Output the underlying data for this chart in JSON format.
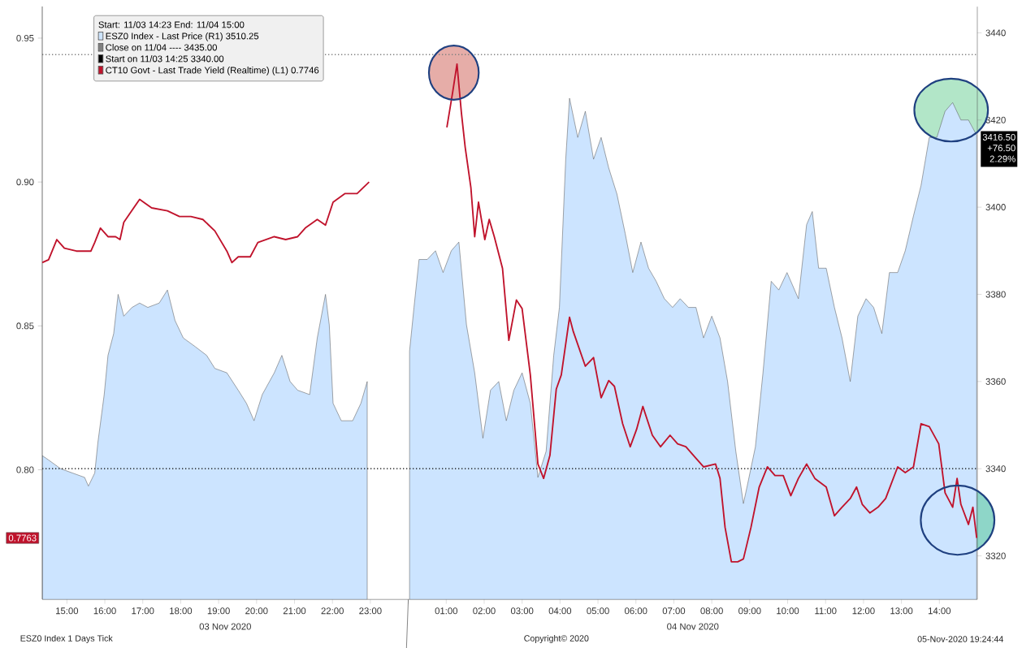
{
  "chart_data": {
    "type": "line",
    "legend_title": "Start: 11/03 14:23 End: 11/04 15:00",
    "legend": "top left",
    "xlim": [
      "2020-11-03T14:21",
      "2020-11-04T15:00"
    ],
    "xticks": [
      {
        "value": "2020-11-03T15:00",
        "label": "15:00"
      },
      {
        "value": "2020-11-03T16:00",
        "label": "16:00"
      },
      {
        "value": "2020-11-03T17:00",
        "label": "17:00"
      },
      {
        "value": "2020-11-03T18:00",
        "label": "18:00"
      },
      {
        "value": "2020-11-03T19:00",
        "label": "19:00"
      },
      {
        "value": "2020-11-03T20:00",
        "label": "20:00"
      },
      {
        "value": "2020-11-03T21:00",
        "label": "21:00"
      },
      {
        "value": "2020-11-03T22:00",
        "label": "22:00"
      },
      {
        "value": "2020-11-03T23:00",
        "label": "23:00"
      },
      {
        "value": "2020-11-04T00:00",
        "label": null
      },
      {
        "value": "2020-11-04T01:00",
        "label": "01:00"
      },
      {
        "value": "2020-11-04T02:00",
        "label": "02:00"
      },
      {
        "value": "2020-11-04T03:00",
        "label": "03:00"
      },
      {
        "value": "2020-11-04T04:00",
        "label": "04:00"
      },
      {
        "value": "2020-11-04T05:00",
        "label": "05:00"
      },
      {
        "value": "2020-11-04T06:00",
        "label": "06:00"
      },
      {
        "value": "2020-11-04T07:00",
        "label": "07:00"
      },
      {
        "value": "2020-11-04T08:00",
        "label": "08:00"
      },
      {
        "value": "2020-11-04T09:00",
        "label": "09:00"
      },
      {
        "value": "2020-11-04T10:00",
        "label": "10:00"
      },
      {
        "value": "2020-11-04T11:00",
        "label": "11:00"
      },
      {
        "value": "2020-11-04T12:00",
        "label": "12:00"
      },
      {
        "value": "2020-11-04T13:00",
        "label": "13:00"
      },
      {
        "value": "2020-11-04T14:00",
        "label": "14:00"
      }
    ],
    "ylim": [
      0.755,
      0.961
    ],
    "yticks": [
      {
        "value": 0.8,
        "label": "0.80"
      },
      {
        "value": 0.85,
        "label": "0.85"
      },
      {
        "value": 0.9,
        "label": "0.90"
      },
      {
        "value": 0.95,
        "label": "0.95"
      }
    ],
    "y2lim": [
      3310,
      3446
    ],
    "y2ticks": [
      3320,
      3340,
      3360,
      3380,
      3400,
      3420,
      3440
    ],
    "ref_lines": [
      {
        "axis": "y2",
        "value": 3435,
        "label": "Close on 11/04 ---- 3435.00",
        "color": "#808080",
        "line_style": "dotted"
      },
      {
        "axis": "y2",
        "value": 3340,
        "label": "Start on 11/03 14:25 3340.00",
        "color": "#000000",
        "line_style": "dotted"
      }
    ],
    "series": [
      {
        "name": "ESZ0 Index - Last Price (R1) 3510.25",
        "type": "area",
        "axis": "y2",
        "color": "#cce4ff",
        "x": [
          "2020-11-03T14:21",
          "2020-11-03T14:31",
          "2020-11-03T14:50",
          "2020-11-03T15:09",
          "2020-11-03T15:28",
          "2020-11-03T15:34",
          "2020-11-03T15:44",
          "2020-11-03T15:49",
          "2020-11-03T15:59",
          "2020-11-03T16:05",
          "2020-11-03T16:14",
          "2020-11-03T16:21",
          "2020-11-03T16:30",
          "2020-11-03T16:43",
          "2020-11-03T16:55",
          "2020-11-03T17:08",
          "2020-11-03T17:26",
          "2020-11-03T17:39",
          "2020-11-03T17:51",
          "2020-11-03T18:04",
          "2020-11-03T18:23",
          "2020-11-03T18:41",
          "2020-11-03T18:54",
          "2020-11-03T19:13",
          "2020-11-03T19:31",
          "2020-11-03T19:44",
          "2020-11-03T19:56",
          "2020-11-03T20:09",
          "2020-11-03T20:28",
          "2020-11-03T20:40",
          "2020-11-03T20:53",
          "2020-11-03T21:05",
          "2020-11-03T21:24",
          "2020-11-03T21:36",
          "2020-11-03T21:49",
          "2020-11-03T21:55",
          "2020-11-03T22:01",
          "2020-11-03T22:14",
          "2020-11-03T22:32",
          "2020-11-03T22:45",
          "2020-11-03T22:55",
          "2020-11-03T23:30",
          "2020-11-04T00:02",
          "2020-11-04T00:09",
          "2020-11-04T00:17",
          "2020-11-04T00:30",
          "2020-11-04T00:43",
          "2020-11-04T00:55",
          "2020-11-04T01:08",
          "2020-11-04T01:20",
          "2020-11-04T01:32",
          "2020-11-04T01:45",
          "2020-11-04T01:58",
          "2020-11-04T02:10",
          "2020-11-04T02:23",
          "2020-11-04T02:35",
          "2020-11-04T02:47",
          "2020-11-04T03:00",
          "2020-11-04T03:13",
          "2020-11-04T03:25",
          "2020-11-04T03:38",
          "2020-11-04T03:50",
          "2020-11-04T03:59",
          "2020-11-04T04:09",
          "2020-11-04T04:15",
          "2020-11-04T04:28",
          "2020-11-04T04:40",
          "2020-11-04T04:53",
          "2020-11-04T05:05",
          "2020-11-04T05:17",
          "2020-11-04T05:30",
          "2020-11-04T05:43",
          "2020-11-04T05:55",
          "2020-11-04T06:08",
          "2020-11-04T06:20",
          "2020-11-04T06:32",
          "2020-11-04T06:45",
          "2020-11-04T06:58",
          "2020-11-04T07:10",
          "2020-11-04T07:23",
          "2020-11-04T07:35",
          "2020-11-04T07:47",
          "2020-11-04T08:00",
          "2020-11-04T08:13",
          "2020-11-04T08:25",
          "2020-11-04T08:38",
          "2020-11-04T08:50",
          "2020-11-04T08:56",
          "2020-11-04T09:09",
          "2020-11-04T09:21",
          "2020-11-04T09:34",
          "2020-11-04T09:46",
          "2020-11-04T09:59",
          "2020-11-04T10:17",
          "2020-11-04T10:30",
          "2020-11-04T10:39",
          "2020-11-04T10:49",
          "2020-11-04T11:01",
          "2020-11-04T11:14",
          "2020-11-04T11:26",
          "2020-11-04T11:39",
          "2020-11-04T11:51",
          "2020-11-04T12:04",
          "2020-11-04T12:16",
          "2020-11-04T12:29",
          "2020-11-04T12:41",
          "2020-11-04T12:54",
          "2020-11-04T13:06",
          "2020-11-04T13:19",
          "2020-11-04T13:31",
          "2020-11-04T13:44",
          "2020-11-04T13:56",
          "2020-11-04T14:09",
          "2020-11-04T14:21",
          "2020-11-04T14:34",
          "2020-11-04T14:46",
          "2020-11-04T14:59"
        ],
        "values": [
          3343,
          3342,
          3340,
          3339,
          3338,
          3336,
          3339,
          3346,
          3357,
          3366,
          3371,
          3380,
          3375,
          3377,
          3378,
          3377,
          3378,
          3381,
          3374,
          3370,
          3368,
          3366,
          3363,
          3362,
          3358,
          3355,
          3351,
          3357,
          3362,
          3366,
          3360,
          3358,
          3357,
          3370,
          3380,
          3373,
          3355,
          3351,
          3351,
          3355,
          3360,
          null,
          3367,
          3377,
          3388,
          3388,
          3390,
          3385,
          3390,
          3392,
          3373,
          3362,
          3347,
          3358,
          3360,
          3351,
          3358,
          3362,
          3355,
          3338,
          3344,
          3366,
          3377,
          3411,
          3425,
          3416,
          3422,
          3411,
          3416,
          3409,
          3403,
          3394,
          3385,
          3392,
          3386,
          3383,
          3379,
          3377,
          3379,
          3377,
          3377,
          3370,
          3375,
          3370,
          3360,
          3344,
          3332,
          3336,
          3345,
          3362,
          3383,
          3381,
          3385,
          3379,
          3396,
          3399,
          3386,
          3386,
          3377,
          3370,
          3360,
          3375,
          3379,
          3377,
          3371,
          3385,
          3385,
          3390,
          3398,
          3405,
          3416,
          3416,
          3422,
          3424,
          3420,
          3420,
          3416.5
        ]
      },
      {
        "name": "CT10 Govt - Last Trade Yield (Realtime) (L1) 0.7746",
        "color": "#c0132c",
        "x": [
          "2020-11-03T14:21",
          "2020-11-03T14:31",
          "2020-11-03T14:44",
          "2020-11-03T14:56",
          "2020-11-03T15:15",
          "2020-11-03T15:28",
          "2020-11-03T15:38",
          "2020-11-03T15:44",
          "2020-11-03T15:53",
          "2020-11-03T16:05",
          "2020-11-03T16:17",
          "2020-11-03T16:24",
          "2020-11-03T16:30",
          "2020-11-03T16:55",
          "2020-11-03T17:14",
          "2020-11-03T17:39",
          "2020-11-03T17:58",
          "2020-11-03T18:16",
          "2020-11-03T18:35",
          "2020-11-03T18:54",
          "2020-11-03T19:13",
          "2020-11-03T19:21",
          "2020-11-03T19:31",
          "2020-11-03T19:50",
          "2020-11-03T20:02",
          "2020-11-03T20:28",
          "2020-11-03T20:46",
          "2020-11-03T21:05",
          "2020-11-03T21:17",
          "2020-11-03T21:36",
          "2020-11-03T21:49",
          "2020-11-03T22:01",
          "2020-11-03T22:20",
          "2020-11-03T22:39",
          "2020-11-03T22:58",
          "2020-11-03T23:30",
          "2020-11-04T01:01",
          "2020-11-04T01:10",
          "2020-11-04T01:17",
          "2020-11-04T01:24",
          "2020-11-04T01:30",
          "2020-11-04T01:39",
          "2020-11-04T01:45",
          "2020-11-04T01:51",
          "2020-11-04T02:01",
          "2020-11-04T02:08",
          "2020-11-04T02:16",
          "2020-11-04T02:29",
          "2020-11-04T02:39",
          "2020-11-04T02:51",
          "2020-11-04T03:00",
          "2020-11-04T03:13",
          "2020-11-04T03:25",
          "2020-11-04T03:34",
          "2020-11-04T03:44",
          "2020-11-04T03:54",
          "2020-11-04T04:02",
          "2020-11-04T04:15",
          "2020-11-04T04:21",
          "2020-11-04T04:40",
          "2020-11-04T04:53",
          "2020-11-04T05:05",
          "2020-11-04T05:17",
          "2020-11-04T05:26",
          "2020-11-04T05:39",
          "2020-11-04T05:51",
          "2020-11-04T06:01",
          "2020-11-04T06:11",
          "2020-11-04T06:26",
          "2020-11-04T06:39",
          "2020-11-04T06:54",
          "2020-11-04T07:06",
          "2020-11-04T07:19",
          "2020-11-04T07:35",
          "2020-11-04T07:47",
          "2020-11-04T08:06",
          "2020-11-04T08:13",
          "2020-11-04T08:21",
          "2020-11-04T08:31",
          "2020-11-04T08:41",
          "2020-11-04T08:50",
          "2020-11-04T09:02",
          "2020-11-04T09:15",
          "2020-11-04T09:28",
          "2020-11-04T09:40",
          "2020-11-04T09:53",
          "2020-11-04T10:05",
          "2020-11-04T10:17",
          "2020-11-04T10:30",
          "2020-11-04T10:43",
          "2020-11-04T11:01",
          "2020-11-04T11:14",
          "2020-11-04T11:26",
          "2020-11-04T11:39",
          "2020-11-04T11:49",
          "2020-11-04T11:58",
          "2020-11-04T12:10",
          "2020-11-04T12:23",
          "2020-11-04T12:35",
          "2020-11-04T12:54",
          "2020-11-04T13:06",
          "2020-11-04T13:19",
          "2020-11-04T13:31",
          "2020-11-04T13:44",
          "2020-11-04T13:59",
          "2020-11-04T14:09",
          "2020-11-04T14:21",
          "2020-11-04T14:28",
          "2020-11-04T14:34",
          "2020-11-04T14:46",
          "2020-11-04T14:53",
          "2020-11-04T14:59"
        ],
        "values": [
          0.872,
          0.873,
          0.88,
          0.877,
          0.876,
          0.876,
          0.876,
          0.879,
          0.884,
          0.881,
          0.881,
          0.88,
          0.886,
          0.894,
          0.891,
          0.89,
          0.888,
          0.888,
          0.887,
          0.883,
          0.876,
          0.872,
          0.874,
          0.874,
          0.879,
          0.881,
          0.88,
          0.881,
          0.884,
          0.887,
          0.885,
          0.893,
          0.896,
          0.896,
          0.9,
          null,
          0.919,
          0.931,
          0.941,
          0.924,
          0.912,
          0.898,
          0.881,
          0.893,
          0.88,
          0.887,
          0.881,
          0.87,
          0.845,
          0.859,
          0.856,
          0.833,
          0.802,
          0.797,
          0.805,
          0.828,
          0.833,
          0.853,
          0.848,
          0.836,
          0.839,
          0.825,
          0.831,
          0.829,
          0.816,
          0.808,
          0.814,
          0.822,
          0.812,
          0.808,
          0.812,
          0.809,
          0.808,
          0.804,
          0.801,
          0.802,
          0.797,
          0.78,
          0.768,
          0.768,
          0.769,
          0.78,
          0.794,
          0.801,
          0.798,
          0.798,
          0.791,
          0.797,
          0.802,
          0.797,
          0.794,
          0.784,
          0.787,
          0.79,
          0.794,
          0.788,
          0.785,
          0.787,
          0.79,
          0.801,
          0.799,
          0.801,
          0.816,
          0.815,
          0.809,
          0.792,
          0.787,
          0.797,
          0.788,
          0.781,
          0.787,
          0.7763
        ]
      }
    ],
    "annotations": [
      "0.7763",
      "3416.50",
      "+76.50",
      "2.29%",
      "ESZ0 Index 1 Days  Tick",
      "Copyright© 2020",
      "05-Nov-2020 19:24:44",
      "03 Nov 2020",
      "04 Nov 2020"
    ]
  }
}
